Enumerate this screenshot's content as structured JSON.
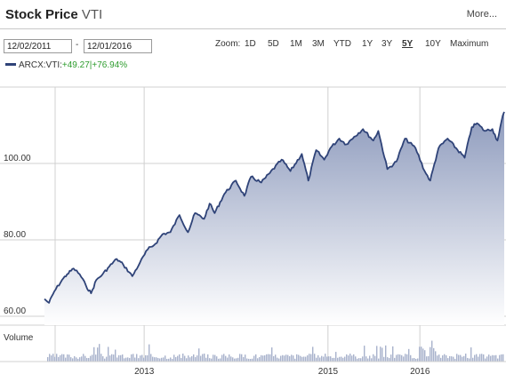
{
  "header": {
    "title_bold": "Stock Price",
    "title_symbol": "VTI",
    "more_label": "More..."
  },
  "date_range": {
    "start": "12/02/2011",
    "separator": "-",
    "end": "12/01/2016"
  },
  "zoom": {
    "label": "Zoom:",
    "options": [
      "1D",
      "5D",
      "1M",
      "3M",
      "YTD",
      "1Y",
      "3Y",
      "5Y",
      "10Y",
      "Maximum"
    ],
    "active": "5Y"
  },
  "legend": {
    "series": "ARCX:VTI:",
    "change_abs": "+49.27",
    "separator": "|",
    "change_pct": "+76.94%"
  },
  "colors": {
    "line": "#2f4378",
    "area_top": "#8e9bbd",
    "area_bottom": "#ffffff",
    "grid": "#d0d0d0",
    "volume": "#a8b2cc",
    "change": "#2e9c2e"
  },
  "chart_data": {
    "type": "area",
    "x_range": [
      "2011-12-02",
      "2016-12-01"
    ],
    "ylim": [
      60,
      120
    ],
    "yticks": [
      60,
      80,
      100
    ],
    "ytick_labels": [
      "60.00",
      "80.00",
      "100.00"
    ],
    "xticks": [
      "2013",
      "2015",
      "2016"
    ],
    "grid": true,
    "series": [
      {
        "values": [
          [
            "2011-12-02",
            64.5
          ],
          [
            "2011-12-20",
            63.5
          ],
          [
            "2012-01-10",
            66.5
          ],
          [
            "2012-02-10",
            69.5
          ],
          [
            "2012-03-01",
            71.0
          ],
          [
            "2012-03-27",
            72.5
          ],
          [
            "2012-04-20",
            71.0
          ],
          [
            "2012-05-15",
            68.0
          ],
          [
            "2012-06-04",
            66.0
          ],
          [
            "2012-06-25",
            69.5
          ],
          [
            "2012-07-20",
            71.0
          ],
          [
            "2012-08-15",
            73.0
          ],
          [
            "2012-09-14",
            75.0
          ],
          [
            "2012-10-10",
            73.5
          ],
          [
            "2012-11-15",
            70.5
          ],
          [
            "2012-12-15",
            74.0
          ],
          [
            "2013-01-15",
            77.5
          ],
          [
            "2013-02-15",
            79.0
          ],
          [
            "2013-03-15",
            81.5
          ],
          [
            "2013-04-15",
            82.0
          ],
          [
            "2013-05-21",
            86.5
          ],
          [
            "2013-06-24",
            82.0
          ],
          [
            "2013-07-22",
            87.0
          ],
          [
            "2013-08-27",
            85.5
          ],
          [
            "2013-09-18",
            89.5
          ],
          [
            "2013-10-08",
            87.0
          ],
          [
            "2013-11-15",
            92.0
          ],
          [
            "2013-12-31",
            95.5
          ],
          [
            "2014-02-03",
            91.5
          ],
          [
            "2014-03-01",
            96.5
          ],
          [
            "2014-04-11",
            95.0
          ],
          [
            "2014-05-15",
            97.5
          ],
          [
            "2014-07-01",
            101.0
          ],
          [
            "2014-08-05",
            98.0
          ],
          [
            "2014-09-19",
            102.5
          ],
          [
            "2014-10-15",
            95.5
          ],
          [
            "2014-11-15",
            103.5
          ],
          [
            "2014-12-17",
            101.0
          ],
          [
            "2015-01-10",
            104.0
          ],
          [
            "2015-02-15",
            106.5
          ],
          [
            "2015-03-15",
            105.0
          ],
          [
            "2015-04-15",
            107.0
          ],
          [
            "2015-05-20",
            109.0
          ],
          [
            "2015-06-30",
            106.0
          ],
          [
            "2015-07-20",
            108.5
          ],
          [
            "2015-08-25",
            98.5
          ],
          [
            "2015-09-30",
            100.5
          ],
          [
            "2015-11-03",
            106.5
          ],
          [
            "2015-12-15",
            104.0
          ],
          [
            "2016-01-20",
            98.0
          ],
          [
            "2016-02-11",
            95.5
          ],
          [
            "2016-03-15",
            104.0
          ],
          [
            "2016-04-20",
            106.5
          ],
          [
            "2016-06-27",
            101.5
          ],
          [
            "2016-07-25",
            109.5
          ],
          [
            "2016-08-15",
            110.5
          ],
          [
            "2016-09-15",
            108.5
          ],
          [
            "2016-10-15",
            109.0
          ],
          [
            "2016-11-04",
            106.0
          ],
          [
            "2016-11-20",
            111.0
          ],
          [
            "2016-12-01",
            113.5
          ]
        ]
      }
    ]
  },
  "volume": {
    "label": "Volume"
  }
}
